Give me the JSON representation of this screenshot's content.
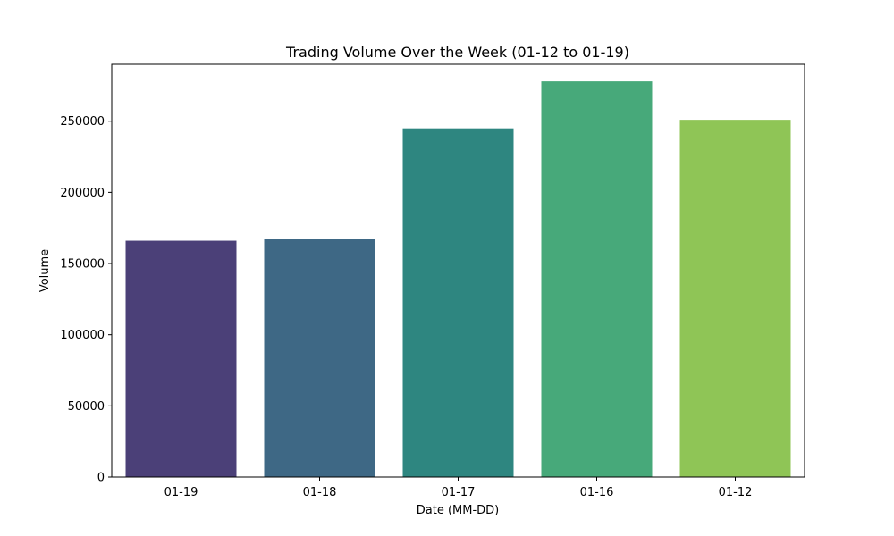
{
  "chart_data": {
    "type": "bar",
    "title": "Trading Volume Over the Week (01-12 to 01-19)",
    "xlabel": "Date (MM-DD)",
    "ylabel": "Volume",
    "categories": [
      "01-19",
      "01-18",
      "01-17",
      "01-16",
      "01-12"
    ],
    "values": [
      166000,
      167000,
      245000,
      278000,
      251000
    ],
    "colors": [
      "#4b4078",
      "#3e6885",
      "#2e8680",
      "#47a97a",
      "#8fc556"
    ],
    "ylim": [
      0,
      290000
    ],
    "yticks": [
      0,
      50000,
      100000,
      150000,
      200000,
      250000
    ],
    "grid": false,
    "legend": "none"
  }
}
